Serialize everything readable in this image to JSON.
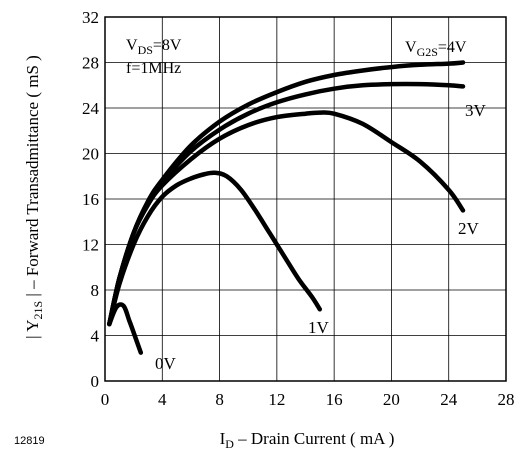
{
  "chart_data": {
    "type": "line",
    "figure_id": "12819",
    "xlabel": {
      "main": "I",
      "sub": "D",
      "rest": " – Drain Current ( mA )"
    },
    "ylabel": {
      "bar_open": "|",
      "main": " Y",
      "sub": "21S",
      "bar_close": " |",
      "rest": "  – Forward Transadmittance ( mS )"
    },
    "xlim": [
      0,
      28
    ],
    "ylim": [
      0,
      32
    ],
    "xticks": [
      "0",
      "4",
      "8",
      "12",
      "16",
      "20",
      "24",
      "28"
    ],
    "yticks": [
      "0",
      "4",
      "8",
      "12",
      "16",
      "20",
      "24",
      "28",
      "32"
    ],
    "grid": true,
    "conditions": {
      "vds": {
        "main": "V",
        "sub": "DS",
        "rest": "=8V"
      },
      "freq": "f=1MHz"
    },
    "param_label": {
      "main": "V",
      "sub": "G2S",
      "rest": "=4V"
    },
    "series": [
      {
        "name": "0V",
        "x": [
          0.3,
          0.8,
          1.3,
          1.7,
          2.1,
          2.5
        ],
        "y": [
          5.0,
          6.5,
          6.6,
          5.3,
          3.9,
          2.5
        ]
      },
      {
        "name": "1V",
        "x": [
          0.3,
          1.0,
          2.0,
          3.0,
          4.0,
          5.0,
          6.0,
          7.0,
          7.7,
          8.5,
          9.5,
          10.5,
          11.5,
          12.5,
          13.5,
          14.5,
          15.0
        ],
        "y": [
          5.0,
          8.5,
          12.0,
          14.5,
          16.2,
          17.2,
          17.8,
          18.2,
          18.3,
          18.0,
          16.8,
          15.0,
          13.0,
          11.0,
          9.0,
          7.3,
          6.3
        ]
      },
      {
        "name": "2V",
        "x": [
          0.3,
          1.0,
          2.0,
          3.0,
          4.0,
          6.0,
          8.0,
          10.0,
          12.0,
          14.0,
          15.0,
          16.0,
          18.0,
          20.0,
          22.0,
          24.0,
          25.0
        ],
        "y": [
          5.0,
          9.0,
          13.0,
          15.5,
          17.2,
          19.5,
          21.3,
          22.5,
          23.2,
          23.5,
          23.6,
          23.5,
          22.6,
          21.0,
          19.3,
          16.8,
          15.0
        ]
      },
      {
        "name": "3V",
        "x": [
          0.3,
          1.0,
          2.0,
          3.0,
          4.0,
          6.0,
          8.0,
          10.0,
          12.0,
          14.0,
          16.0,
          18.0,
          20.0,
          22.0,
          24.0,
          25.0
        ],
        "y": [
          5.0,
          9.0,
          13.0,
          15.7,
          17.5,
          20.2,
          22.1,
          23.5,
          24.5,
          25.2,
          25.7,
          26.0,
          26.1,
          26.1,
          26.0,
          25.9
        ]
      },
      {
        "name": "4V",
        "x": [
          0.3,
          1.0,
          2.0,
          3.0,
          4.0,
          6.0,
          8.0,
          10.0,
          12.0,
          14.0,
          16.0,
          18.0,
          20.0,
          22.0,
          24.0,
          25.0
        ],
        "y": [
          5.0,
          9.0,
          13.0,
          15.8,
          17.7,
          20.7,
          22.8,
          24.3,
          25.4,
          26.3,
          26.9,
          27.3,
          27.6,
          27.8,
          27.9,
          28.0
        ]
      }
    ],
    "curve_labels": [
      "0V",
      "1V",
      "2V",
      "3V"
    ]
  }
}
